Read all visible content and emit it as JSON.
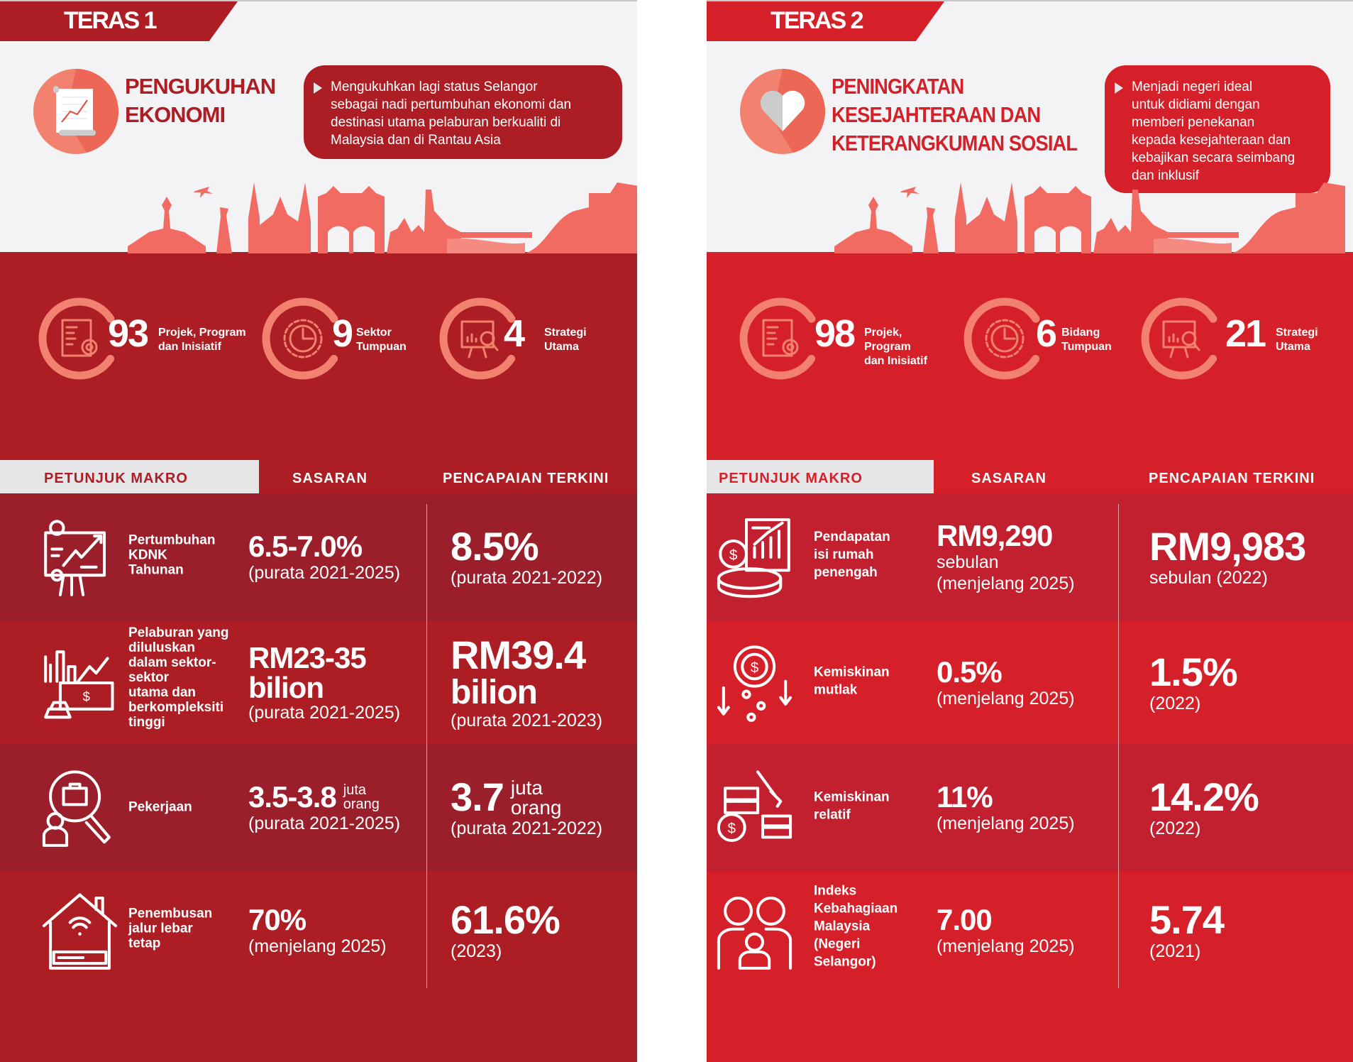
{
  "colors": {
    "teras1": "#AC1E24",
    "teras1_alt": "#9B1E2B",
    "teras2": "#D52029",
    "teras2_alt": "#C2202F",
    "accent": "#F2826F",
    "header_bg": "#E6E6E8"
  },
  "panels": [
    {
      "tab": "TERAS 1",
      "title_icon": "economic-chart-scroll-icon",
      "title": "PENGUKUHAN\nEKONOMI",
      "description": "Mengukuhkan lagi status Selangor\nsebagai nadi pertumbuhan ekonomi dan\ndestinasi utama pelaburan berkualiti di\nMalaysia dan di Rantau Asia",
      "stats": [
        {
          "icon": "document-gear-icon",
          "value": "93",
          "label": "Projek, Program\ndan Inisiatif"
        },
        {
          "icon": "gear-pie-chart-icon",
          "value": "9",
          "label": "Sektor\nTumpuan"
        },
        {
          "icon": "presentation-magnifier-icon",
          "value": "4",
          "label": "Strategi\nUtama"
        }
      ],
      "table": {
        "headers": [
          "PETUNJUK MAKRO",
          "SASARAN",
          "PENCAPAIAN TERKINI"
        ],
        "rows": [
          {
            "icon": "growth-board-icon",
            "indicator": "Pertumbuhan\nKDNK\nTahunan",
            "target": {
              "value": "6.5-7.0%",
              "unit": "",
              "value2": "",
              "note": "(purata 2021-2025)"
            },
            "achieved": {
              "value": "8.5%",
              "unit": "",
              "value2": "",
              "note": "(purata 2021-2022)"
            }
          },
          {
            "icon": "investment-money-icon",
            "indicator": "Pelaburan yang\ndiluluskan\ndalam sektor-\nsektor\nutama dan\nberkompleksiti\ntinggi",
            "target": {
              "value": "RM23-35",
              "unit": "",
              "value2": "bilion",
              "note": "(purata 2021-2025)"
            },
            "achieved": {
              "value": "RM39.4",
              "unit": "",
              "value2": "bilion",
              "note": "(purata 2021-2023)"
            }
          },
          {
            "icon": "job-search-icon",
            "indicator": "Pekerjaan",
            "target": {
              "value": "3.5-3.8",
              "unit": "juta\norang",
              "value2": "",
              "note": "(purata 2021-2025)"
            },
            "achieved": {
              "value": "3.7",
              "unit": "juta\norang",
              "value2": "",
              "note": "(purata 2021-2022)"
            }
          },
          {
            "icon": "house-wifi-icon",
            "indicator": "Penembusan\njalur lebar\ntetap",
            "target": {
              "value": "70%",
              "unit": "",
              "value2": "",
              "note": "(menjelang 2025)"
            },
            "achieved": {
              "value": "61.6%",
              "unit": "",
              "value2": "",
              "note": "(2023)"
            }
          }
        ]
      }
    },
    {
      "tab": "TERAS 2",
      "title_icon": "heart-icon",
      "title": "PENINGKATAN\nKESEJAHTERAAN DAN\nKETERANGKUMAN SOSIAL",
      "description": "Menjadi negeri ideal\nuntuk didiami dengan\nmemberi penekanan\nkepada kesejahteraan dan\nkebajikan secara seimbang\ndan inklusif",
      "stats": [
        {
          "icon": "document-gear-icon",
          "value": "98",
          "label": "Projek, Program\ndan Inisiatif"
        },
        {
          "icon": "gear-pie-chart-icon",
          "value": "6",
          "label": "Bidang\nTumpuan"
        },
        {
          "icon": "presentation-magnifier-icon",
          "value": "21",
          "label": "Strategi\nUtama"
        }
      ],
      "table": {
        "headers": [
          "PETUNJUK MAKRO",
          "SASARAN",
          "PENCAPAIAN TERKINI"
        ],
        "rows": [
          {
            "icon": "income-coin-chart-icon",
            "indicator": "Pendapatan\nisi rumah\npenengah",
            "target": {
              "value": "RM9,290",
              "unit": "",
              "value2": "",
              "note": "sebulan\n(menjelang 2025)"
            },
            "achieved": {
              "value": "RM9,983",
              "unit": "",
              "value2": "",
              "note": "sebulan (2022)"
            }
          },
          {
            "icon": "falling-coin-icon",
            "indicator": "Kemiskinan\nmutlak",
            "target": {
              "value": "0.5%",
              "unit": "",
              "value2": "",
              "note": "(menjelang 2025)"
            },
            "achieved": {
              "value": "1.5%",
              "unit": "",
              "value2": "",
              "note": "(2022)"
            }
          },
          {
            "icon": "coins-hammer-icon",
            "indicator": "Kemiskinan\nrelatif",
            "target": {
              "value": "11%",
              "unit": "",
              "value2": "",
              "note": "(menjelang 2025)"
            },
            "achieved": {
              "value": "14.2%",
              "unit": "",
              "value2": "",
              "note": "(2022)"
            }
          },
          {
            "icon": "family-icon",
            "indicator": "Indeks\nKebahagiaan\nMalaysia\n(Negeri\nSelangor)",
            "target": {
              "value": "7.00",
              "unit": "",
              "value2": "",
              "note": "(menjelang 2025)"
            },
            "achieved": {
              "value": "5.74",
              "unit": "",
              "value2": "",
              "note": "(2021)"
            }
          }
        ]
      }
    }
  ]
}
